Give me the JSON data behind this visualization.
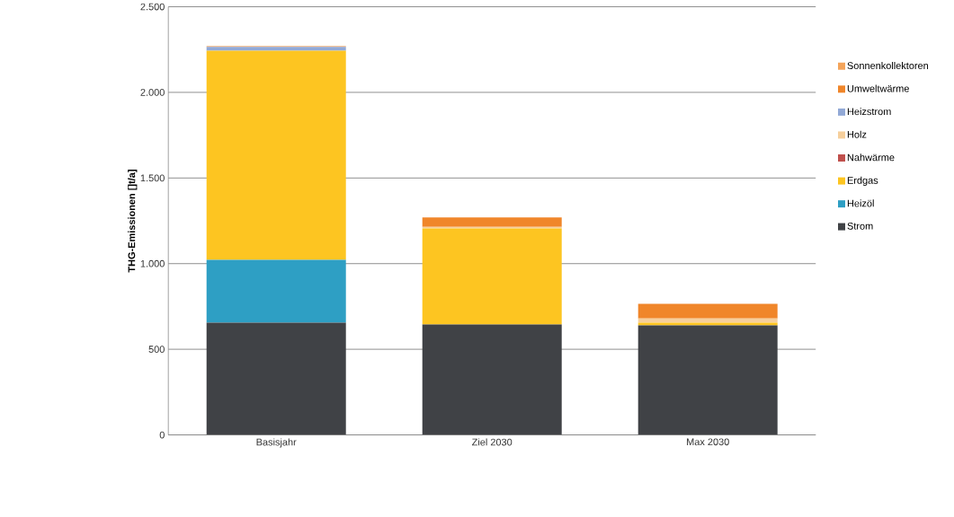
{
  "chart_data": {
    "type": "bar",
    "stacked": true,
    "ylabel": "THG-Emissionen []t/a]",
    "categories": [
      "Basisjahr",
      "Ziel 2030",
      "Max 2030"
    ],
    "series": [
      {
        "name": "Strom",
        "color": "#404246",
        "values": [
          655,
          645,
          640
        ]
      },
      {
        "name": "Heizöl",
        "color": "#2e9fc4",
        "values": [
          367,
          0,
          0
        ]
      },
      {
        "name": "Erdgas",
        "color": "#fdc521",
        "values": [
          1221,
          560,
          15
        ]
      },
      {
        "name": "Nahwärme",
        "color": "#c0504d",
        "values": [
          0,
          0,
          0
        ]
      },
      {
        "name": "Holz",
        "color": "#f6cf9c",
        "values": [
          0,
          10,
          25
        ]
      },
      {
        "name": "Heizstrom",
        "color": "#92a9d6",
        "values": [
          22,
          0,
          0
        ]
      },
      {
        "name": "Umweltwärme",
        "color": "#f0862a",
        "values": [
          5,
          55,
          85
        ]
      },
      {
        "name": "Sonnenkollektoren",
        "color": "#f4a45a",
        "values": [
          0,
          0,
          0
        ]
      }
    ],
    "ylim": [
      0,
      2500
    ],
    "yticks": [
      0,
      500,
      {
        "value": 1000,
        "label": "1.000"
      },
      {
        "value": 1500,
        "label": "1.500"
      },
      {
        "value": 2000,
        "label": "2.000"
      },
      {
        "value": 2500,
        "label": "2.500"
      }
    ],
    "grid": "y",
    "legend": "right"
  }
}
